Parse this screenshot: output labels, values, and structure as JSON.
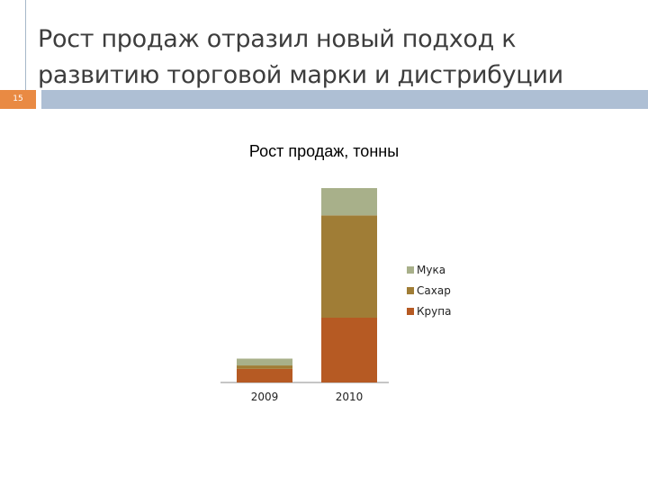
{
  "slide": {
    "title": "Рост продаж отразил новый подход к развитию торговой марки и дистрибуции",
    "number": "15",
    "colors": {
      "number_box": "#e98a43",
      "header_bar": "#aebfd4",
      "title_text": "#3d3d3d"
    }
  },
  "chart_data": {
    "type": "bar",
    "stacked": true,
    "title": "Рост продаж, тонны",
    "categories": [
      "2009",
      "2010"
    ],
    "series": [
      {
        "name": "Крупа",
        "values": [
          4,
          19
        ],
        "color": "#b65a23"
      },
      {
        "name": "Сахар",
        "values": [
          1,
          30
        ],
        "color": "#a07d36"
      },
      {
        "name": "Мука",
        "values": [
          2,
          8
        ],
        "color": "#a8b08a"
      }
    ],
    "legend_order": [
      "Мука",
      "Сахар",
      "Крупа"
    ],
    "legend_position": "right",
    "ylim": [
      0,
      57
    ],
    "y_axis_visible": false,
    "grid": false
  }
}
